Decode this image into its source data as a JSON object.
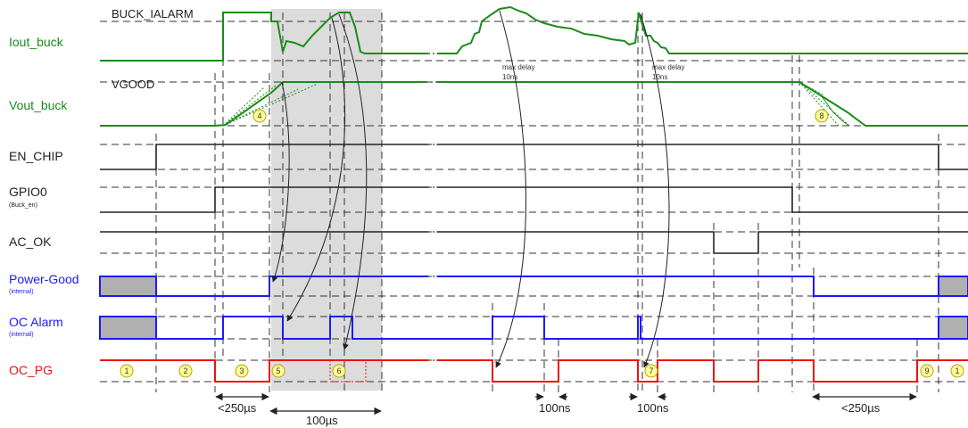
{
  "signals": {
    "iout_buck": "Iout_buck",
    "vout_buck": "Vout_buck",
    "en_chip": "EN_CHIP",
    "gpio0": "GPIO0",
    "gpio0_sub": "(Buck_en)",
    "ac_ok": "AC_OK",
    "power_good": "Power-Good",
    "power_good_sub": "(internal)",
    "oc_alarm": "OC Alarm",
    "oc_alarm_sub": "(internal)",
    "oc_pg": "OC_PG"
  },
  "thresholds": {
    "buck_ialarm": "BUCK_IALARM",
    "vgood": "VGOOD"
  },
  "notes": {
    "max_delay_1": "max delay",
    "ns_1": "10ns",
    "max_delay_2": "max delay",
    "ns_2": "10ns"
  },
  "markers": [
    "1",
    "2",
    "3",
    "4",
    "5",
    "6",
    "7",
    "8",
    "9",
    "1"
  ],
  "timings": {
    "t1": "<250µs",
    "t2": "100µs",
    "t3": "100ns",
    "t4": "100ns",
    "t5": "<250µs"
  },
  "colors": {
    "green": "#1a8c1a",
    "black": "#222222",
    "blue": "#1a1aff",
    "red": "#ee1111",
    "shade": "#dcdcdc",
    "marker_fill": "#ffff99",
    "marker_stroke": "#b8a000"
  }
}
